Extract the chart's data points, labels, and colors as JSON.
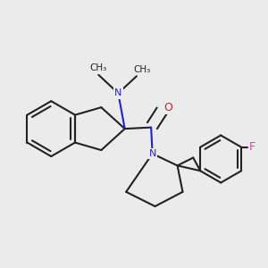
{
  "bg_color": "#ebebeb",
  "bond_color": "#222222",
  "N_color": "#2222cc",
  "O_color": "#cc2222",
  "F_color": "#cc44aa",
  "bond_width": 1.5,
  "figsize": [
    3.0,
    3.0
  ],
  "dpi": 100,
  "xlim": [
    0.0,
    1.0
  ],
  "ylim": [
    0.05,
    1.0
  ]
}
